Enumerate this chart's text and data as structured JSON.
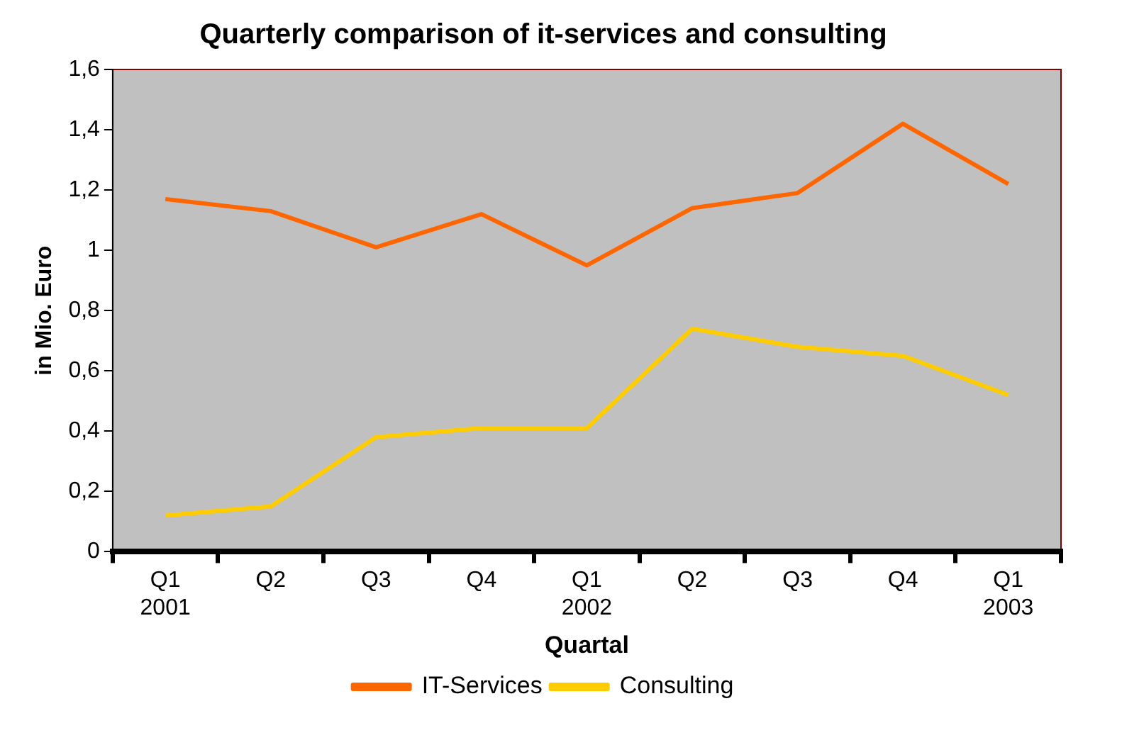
{
  "chart_data": {
    "type": "line",
    "title": "Quarterly comparison of it-services and consulting",
    "xlabel": "Quartal",
    "ylabel": "in Mio. Euro",
    "categories": [
      "Q1\n2001",
      "Q2",
      "Q3",
      "Q4",
      "Q1\n2002",
      "Q2",
      "Q3",
      "Q4",
      "Q1\n2003"
    ],
    "series": [
      {
        "name": "IT-Services",
        "color": "#ff6600",
        "values": [
          1.17,
          1.13,
          1.01,
          1.12,
          0.95,
          1.14,
          1.19,
          1.42,
          1.22
        ]
      },
      {
        "name": "Consulting",
        "color": "#ffcc00",
        "values": [
          0.12,
          0.15,
          0.38,
          0.41,
          0.41,
          0.74,
          0.68,
          0.65,
          0.52
        ]
      }
    ],
    "ylim": [
      0,
      1.6
    ],
    "yticks": [
      0,
      {
        "value": 0.2,
        "label": "0,2"
      },
      {
        "value": 0.4,
        "label": "0,4"
      },
      {
        "value": 0.6,
        "label": "0,6"
      },
      {
        "value": 0.8,
        "label": "0,8"
      },
      1,
      {
        "value": 1.2,
        "label": "1,2"
      },
      {
        "value": 1.4,
        "label": "1,4"
      },
      {
        "value": 1.6,
        "label": "1,6"
      }
    ],
    "grid": false,
    "legend": "bottom",
    "marker": "none",
    "line_style": "solid"
  }
}
